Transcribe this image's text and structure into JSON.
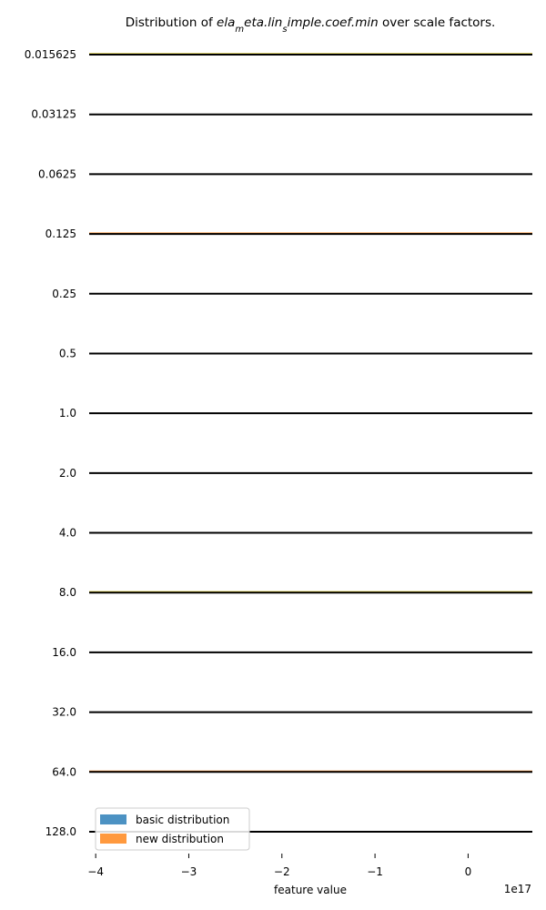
{
  "chart_data": {
    "type": "ridgeline",
    "title": {
      "prefix": "Distribution of ",
      "math": "ela_meta.lin_simple.coef.min",
      "math_rendered": "ela",
      "math_rendered_sub": "m",
      "math_rendered_rest": "eta.lin",
      "math_rendered_sub2": "s",
      "math_rendered_rest2": "imple.coef.min",
      "suffix": " over scale factors."
    },
    "xlabel": "feature value",
    "x_offset_label": "1e17",
    "x_ticks": [
      -4,
      -3,
      -2,
      -1,
      0
    ],
    "x_tick_labels": [
      "−4",
      "−3",
      "−2",
      "−1",
      "0"
    ],
    "xlim": [
      -4.07,
      0.69
    ],
    "scale_factors": [
      "0.015625",
      "0.03125",
      "0.0625",
      "0.125",
      "0.25",
      "0.5",
      "1.0",
      "2.0",
      "4.0",
      "8.0",
      "16.0",
      "32.0",
      "64.0",
      "128.0"
    ],
    "series": [
      {
        "name": "basic distribution",
        "color": "#1f77b4"
      },
      {
        "name": "new distribution",
        "color": "#ff7f0e"
      }
    ],
    "legend_position": "bottom-left",
    "grid": false
  },
  "colors": {
    "baseline": "#000000",
    "tint_orange": "#ff7f0e",
    "tint_yellow": "#c8b400",
    "text": "#000000"
  }
}
